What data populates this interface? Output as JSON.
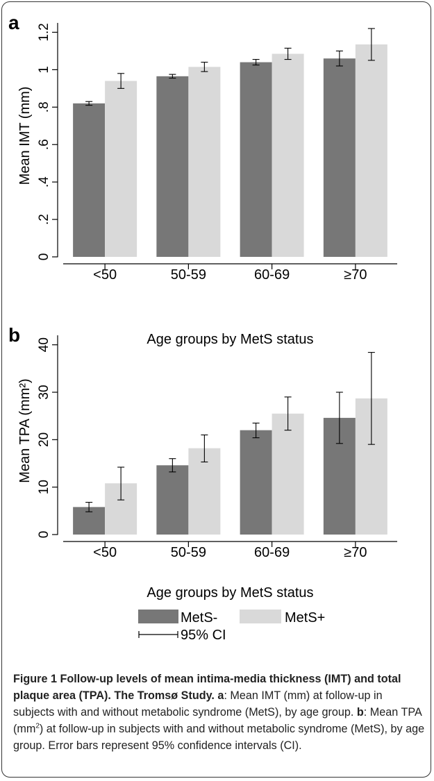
{
  "chart_data": [
    {
      "type": "bar",
      "panel_letter": "a",
      "categories": [
        "<50",
        "50-59",
        "60-69",
        "≥70"
      ],
      "series": [
        {
          "name": "MetS-",
          "values": [
            0.82,
            0.965,
            1.04,
            1.06
          ],
          "ci_low": [
            0.81,
            0.955,
            1.025,
            1.02
          ],
          "ci_high": [
            0.83,
            0.975,
            1.055,
            1.1
          ],
          "color": "#777777"
        },
        {
          "name": "MetS+",
          "values": [
            0.94,
            1.015,
            1.085,
            1.135
          ],
          "ci_low": [
            0.9,
            0.99,
            1.055,
            1.05
          ],
          "ci_high": [
            0.98,
            1.04,
            1.115,
            1.22
          ],
          "color": "#d9d9d9"
        }
      ],
      "xlabel": "Age groups by MetS status",
      "ylabel": "Mean IMT (mm)",
      "ylim": [
        0,
        1.25
      ],
      "yticks": [
        0,
        0.2,
        0.4,
        0.6,
        0.8,
        1,
        1.2
      ],
      "ytick_labels": [
        "0",
        ".2",
        ".4",
        ".6",
        ".8",
        "1",
        "1.2"
      ],
      "grid": false
    },
    {
      "type": "bar",
      "panel_letter": "b",
      "categories": [
        "<50",
        "50-59",
        "60-69",
        "≥70"
      ],
      "series": [
        {
          "name": "MetS-",
          "values": [
            5.8,
            14.6,
            22.0,
            24.6
          ],
          "ci_low": [
            4.8,
            13.2,
            20.4,
            19.2
          ],
          "ci_high": [
            6.8,
            16.0,
            23.5,
            30.0
          ],
          "color": "#777777"
        },
        {
          "name": "MetS+",
          "values": [
            10.8,
            18.2,
            25.5,
            28.7
          ],
          "ci_low": [
            7.3,
            15.3,
            22.0,
            19.0
          ],
          "ci_high": [
            14.2,
            21.0,
            29.0,
            38.4
          ],
          "color": "#d9d9d9"
        }
      ],
      "xlabel": "Age groups by MetS status",
      "ylabel": "Mean TPA (mm²)",
      "ylim": [
        0,
        42
      ],
      "yticks": [
        0,
        10,
        20,
        30,
        40
      ],
      "ytick_labels": [
        "0",
        "10",
        "20",
        "30",
        "40"
      ],
      "grid": false
    }
  ],
  "legend": {
    "series": [
      {
        "label": "MetS-",
        "color": "#777777"
      },
      {
        "label": "MetS+",
        "color": "#d9d9d9"
      }
    ],
    "ci_label": "95% CI",
    "placement": "bottom"
  },
  "caption": {
    "bold": "Figure 1 Follow-up levels of mean intima-media thickness (IMT) and total plaque area (TPA). The Tromsø Study.",
    "a_letter": "a",
    "a_text_1": ": Mean IMT (mm) at follow-up in subjects with and without metabolic syndrome (MetS), by age group.",
    "b_letter": "b",
    "b_text_1": ": Mean TPA (mm",
    "b_sup": "2",
    "b_text_2": ") at follow-up in subjects with and without metabolic syndrome (MetS), by age group. Error bars represent 95% confidence intervals (CI)."
  }
}
